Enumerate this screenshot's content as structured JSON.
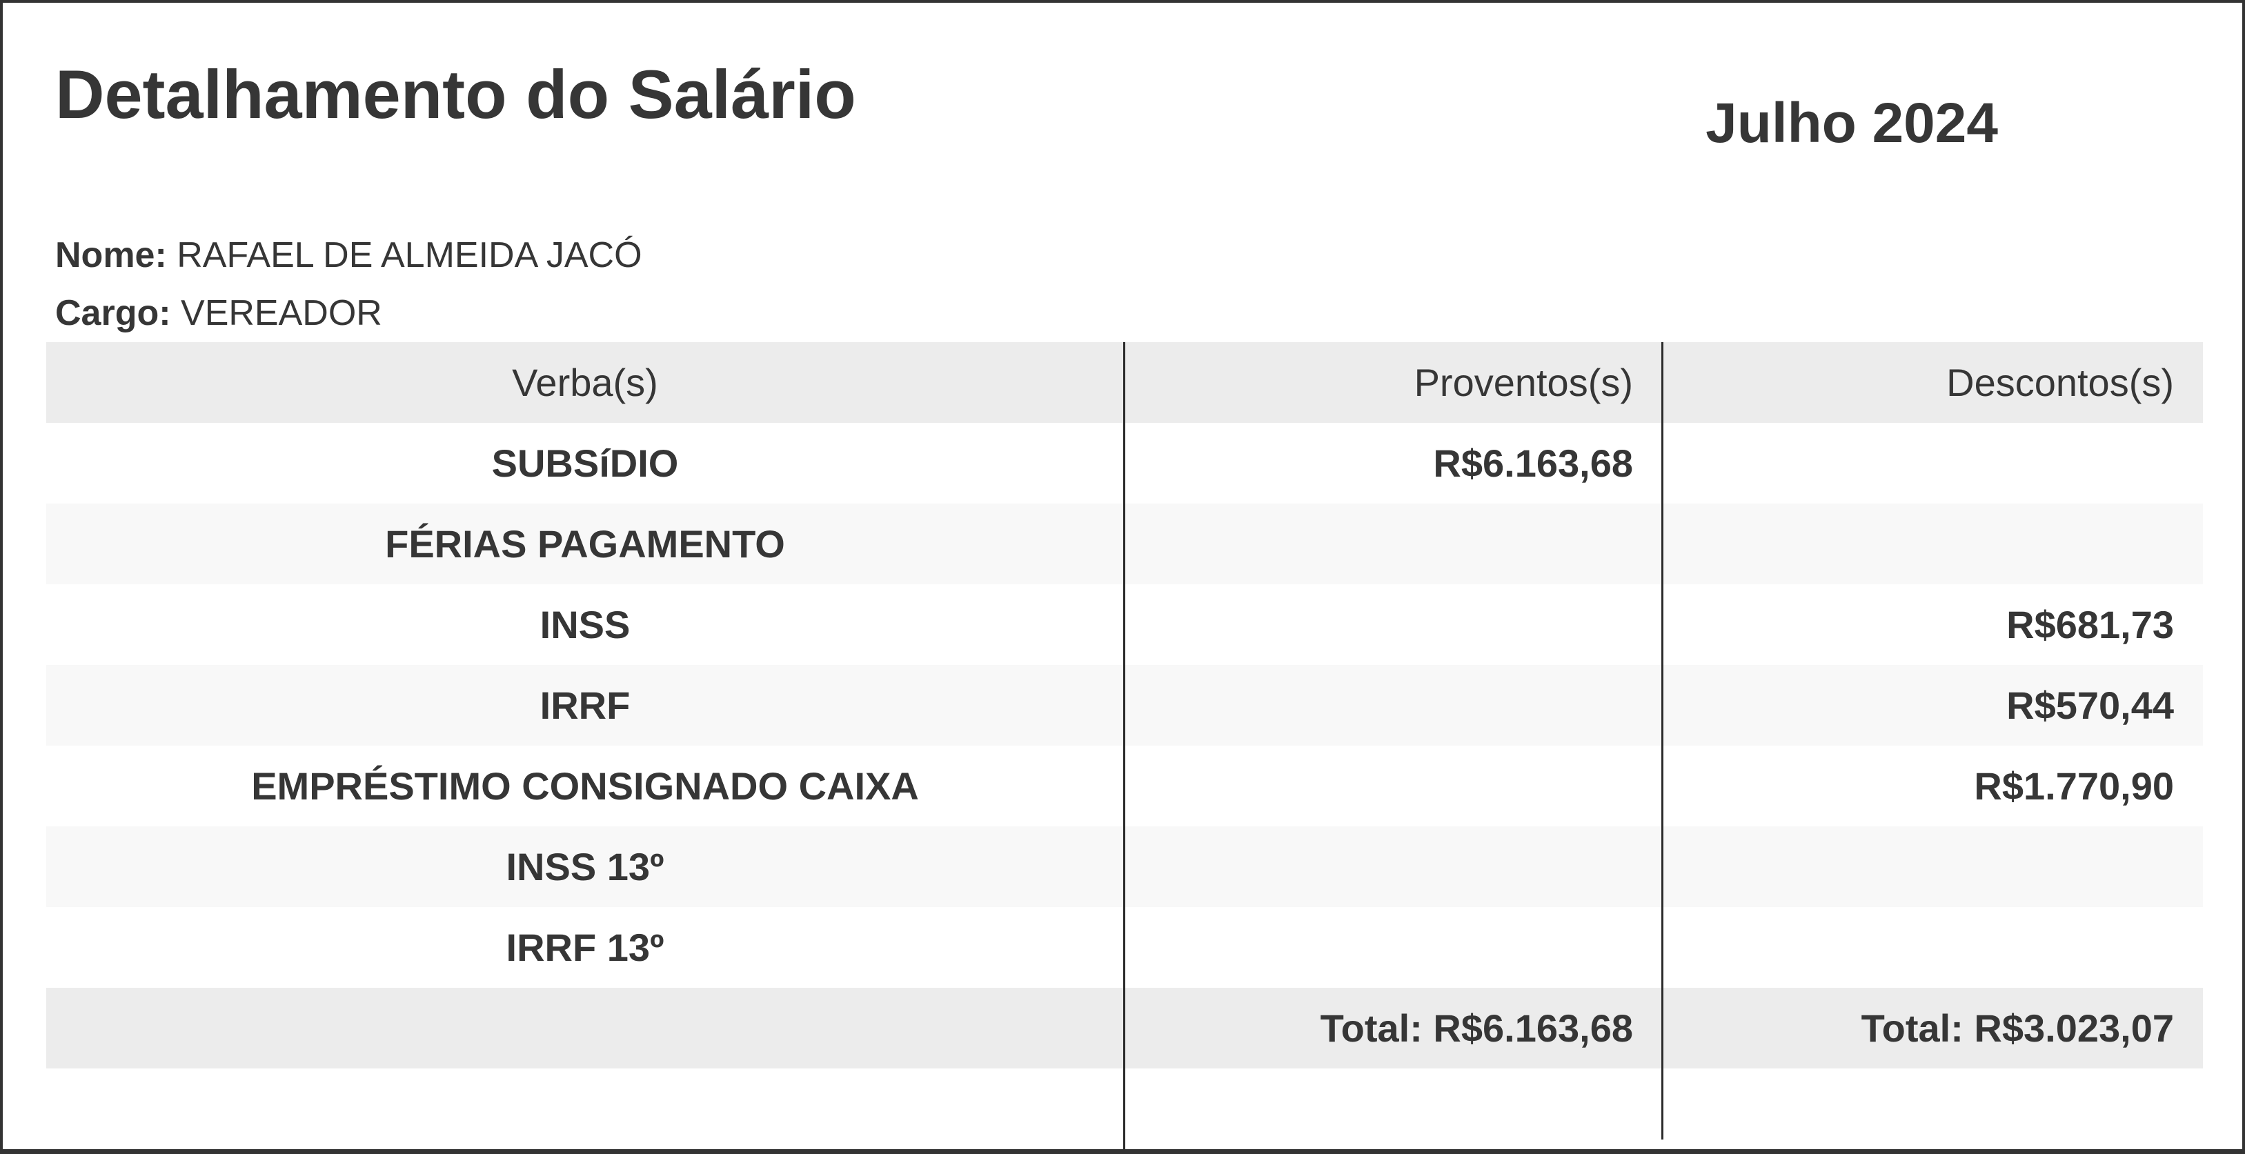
{
  "page": {
    "title": "Detalhamento do Salário",
    "period": "Julho 2024"
  },
  "employee": {
    "name_label": "Nome:",
    "name": "RAFAEL DE ALMEIDA JACÓ",
    "role_label": "Cargo:",
    "role": "VEREADOR"
  },
  "table": {
    "headers": {
      "verba": "Verba(s)",
      "proventos": "Proventos(s)",
      "descontos": "Descontos(s)"
    },
    "rows": [
      {
        "verba": "SUBSíDIO",
        "proventos": "R$6.163,68",
        "descontos": ""
      },
      {
        "verba": "FÉRIAS PAGAMENTO",
        "proventos": "",
        "descontos": ""
      },
      {
        "verba": "INSS",
        "proventos": "",
        "descontos": "R$681,73"
      },
      {
        "verba": "IRRF",
        "proventos": "",
        "descontos": "R$570,44"
      },
      {
        "verba": "EMPRÉSTIMO CONSIGNADO CAIXA",
        "proventos": "",
        "descontos": "R$1.770,90"
      },
      {
        "verba": "INSS 13º",
        "proventos": "",
        "descontos": ""
      },
      {
        "verba": "IRRF 13º",
        "proventos": "",
        "descontos": ""
      }
    ],
    "totals": {
      "proventos": "Total: R$6.163,68",
      "descontos": "Total: R$3.023,07"
    }
  },
  "colors": {
    "text": "#363636",
    "header_band": "#ececec",
    "alt_row": "#f8f8f8",
    "total_band": "#ececec",
    "rule": "#2b2b2b",
    "page_border": "#333333"
  }
}
